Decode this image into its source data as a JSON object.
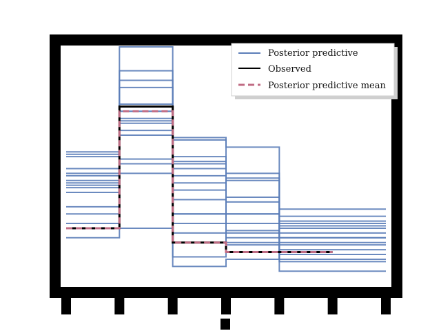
{
  "chart_data": {
    "type": "line",
    "title": "",
    "xlabel": "",
    "ylabel": "",
    "xlim": [
      0,
      6
    ],
    "ylim": [
      0,
      10
    ],
    "x_edges": [
      0,
      1,
      2,
      3,
      4,
      5,
      6
    ],
    "ppc_draws": [
      [
        2.4,
        10.0,
        3.0,
        1.8,
        1.5,
        1.5
      ],
      [
        2.0,
        9.0,
        3.0,
        2.2,
        1.8,
        1.8
      ],
      [
        2.6,
        8.6,
        2.6,
        2.6,
        1.0,
        1.0
      ],
      [
        4.2,
        8.3,
        2.2,
        1.7,
        1.3,
        1.3
      ],
      [
        4.1,
        7.6,
        1.2,
        1.4,
        1.7,
        1.7
      ],
      [
        3.9,
        7.3,
        0.8,
        1.1,
        2.5,
        2.5
      ],
      [
        3.3,
        7.3,
        4.0,
        2.3,
        0.6,
        0.6
      ],
      [
        3.0,
        7.0,
        4.3,
        3.0,
        1.1,
        1.1
      ],
      [
        5.5,
        6.5,
        3.6,
        2.0,
        2.6,
        2.6
      ],
      [
        5.4,
        6.9,
        5.2,
        4.7,
        2.0,
        2.0
      ],
      [
        5.6,
        6.8,
        6.2,
        3.7,
        2.2,
        2.2
      ],
      [
        4.7,
        6.3,
        6.1,
        5.8,
        2.9,
        2.9
      ],
      [
        4.6,
        5.1,
        4.6,
        4.4,
        2.0,
        2.0
      ],
      [
        4.9,
        5.3,
        5.1,
        3.0,
        2.4,
        2.4
      ],
      [
        4.3,
        4.7,
        5.4,
        3.5,
        3.2,
        3.2
      ],
      [
        4.4,
        2.4,
        4.9,
        4.5,
        2.7,
        2.7
      ]
    ],
    "series": [
      {
        "name": "Observed",
        "values": [
          2.4,
          7.5,
          1.8,
          1.4,
          1.4,
          1.4
        ],
        "color": "#000000",
        "style": "solid"
      },
      {
        "name": "Posterior predictive mean",
        "values": [
          2.4,
          7.3,
          1.8,
          1.4,
          1.4,
          1.4
        ],
        "color": "#c06c84",
        "style": "dashed"
      }
    ],
    "ppc_color": "#5b7db8",
    "legend": {
      "placement": "top-right",
      "entries": [
        {
          "label": "Posterior predictive",
          "color": "#5b7db8",
          "style": "solid"
        },
        {
          "label": "Observed",
          "color": "#000000",
          "style": "solid"
        },
        {
          "label": "Posterior predictive mean",
          "color": "#c06c84",
          "style": "dashed"
        }
      ]
    },
    "grid": false
  }
}
